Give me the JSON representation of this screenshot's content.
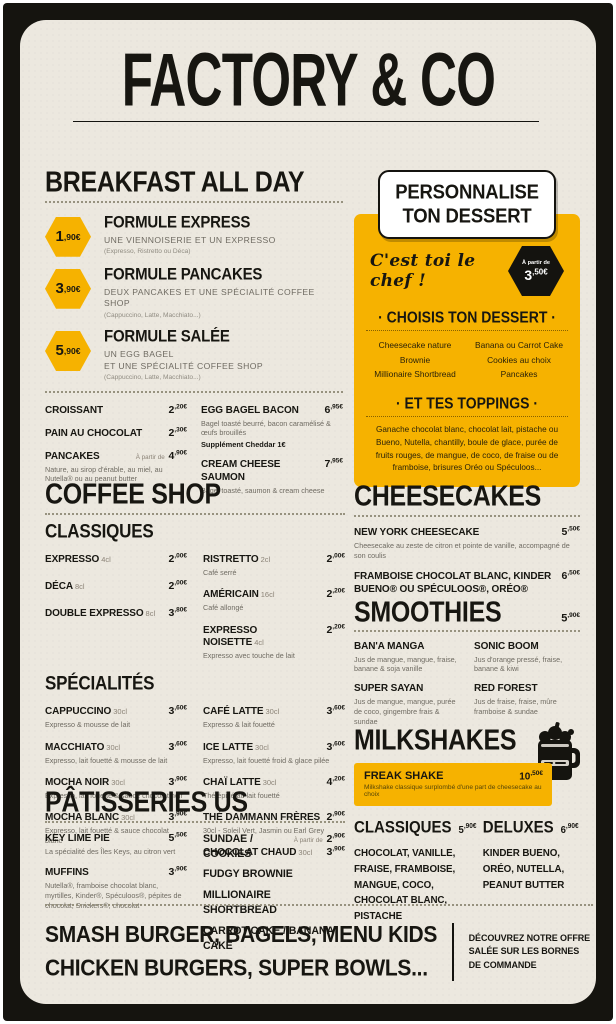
{
  "brand": {
    "title": "FACTORY & CO"
  },
  "colors": {
    "yellow": "#F6B200",
    "black": "#15140F",
    "paper": "#ECE8DF",
    "muted": "#6F6B62"
  },
  "breakfast": {
    "title": "BREAKFAST ALL DAY",
    "formules": [
      {
        "price": "1,90€",
        "name": "FORMULE EXPRESS",
        "desc": "UNE VIENNOISERIE ET UN EXPRESSO",
        "note": "(Expresso, Ristretto ou Déca)"
      },
      {
        "price": "3,90€",
        "name": "FORMULE PANCAKES",
        "desc": "DEUX PANCAKES ET UNE SPÉCIALITÉ COFFEE SHOP",
        "note": "(Cappuccino, Latte, Macchiato...)"
      },
      {
        "price": "5,90€",
        "name": "FORMULE SALÉE",
        "desc": "UN EGG BAGEL\nET UNE SPÉCIALITÉ COFFEE SHOP",
        "note": "(Cappuccino, Latte, Macchiato...)"
      }
    ],
    "items_left": [
      {
        "name": "CROISSANT",
        "price": "2,20€"
      },
      {
        "name": "PAIN AU CHOCOLAT",
        "price": "2,30€"
      },
      {
        "name": "PANCAKES",
        "prefix": "À partir de",
        "price": "4,90€",
        "desc": "Nature, au sirop d'érable, au miel, au Nutella® ou au peanut butter"
      }
    ],
    "items_right": [
      {
        "name": "EGG BAGEL BACON",
        "price": "6,95€",
        "desc": "Bagel toasté beurré, bacon caramélisé & œufs brouillés",
        "bold": "Supplément Cheddar 1€"
      },
      {
        "name": "CREAM CHEESE SAUMON",
        "price": "7,95€",
        "desc": "Bagel toasté, saumon & cream cheese"
      }
    ]
  },
  "dessert": {
    "badge_line1": "PERSONNALISE",
    "badge_line2": "TON DESSERT",
    "script": "C'est toi le chef !",
    "hex_prefix": "À partir de",
    "hex_price": "3,50€",
    "choose_title": "· CHOISIS TON DESSERT ·",
    "options_left": [
      "Cheesecake nature",
      "Brownie",
      "Millionaire Shortbread"
    ],
    "options_right": [
      "Banana ou Carrot Cake",
      "Cookies au choix",
      "Pancakes"
    ],
    "toppings_title": "· ET TES TOPPINGS ·",
    "toppings_text": "Ganache chocolat blanc, chocolat lait, pistache ou Bueno, Nutella, chantilly, boule de glace, purée de fruits rouges, de mangue, de coco, de fraise ou de framboise, brisures Oréo ou Spéculoos..."
  },
  "coffee": {
    "title": "COFFEE SHOP",
    "classiques_title": "CLASSIQUES",
    "classiques_left": [
      {
        "name": "EXPRESSO",
        "size": "4cl",
        "price": "2,00€"
      },
      {
        "name": "DÉCA",
        "size": "8cl",
        "price": "2,00€"
      },
      {
        "name": "DOUBLE EXPRESSO",
        "size": "8cl",
        "price": "3,80€"
      }
    ],
    "classiques_right": [
      {
        "name": "RISTRETTO",
        "size": "2cl",
        "price": "2,00€",
        "desc": "Café serré"
      },
      {
        "name": "AMÉRICAIN",
        "size": "16cl",
        "price": "2,20€",
        "desc": "Café allongé"
      },
      {
        "name": "EXPRESSO NOISETTE",
        "size": "4cl",
        "price": "2,20€",
        "desc": "Expresso avec touche de lait"
      }
    ],
    "specialites_title": "SPÉCIALITÉS",
    "specialites_left": [
      {
        "name": "CAPPUCCINO",
        "size": "30cl",
        "price": "3,60€",
        "desc": "Expresso & mousse de lait"
      },
      {
        "name": "MACCHIATO",
        "size": "30cl",
        "price": "3,60€",
        "desc": "Expresso, lait fouetté & mousse de lait"
      },
      {
        "name": "MOCHA NOIR",
        "size": "30cl",
        "price": "3,90€",
        "desc": "Expresso, lait fouetté & sauce chocolat noir"
      },
      {
        "name": "MOCHA BLANC",
        "size": "30cl",
        "price": "3,90€",
        "desc": "Expresso, lait fouetté & sauce chocolat blanc"
      }
    ],
    "specialites_right": [
      {
        "name": "CAFÉ LATTE",
        "size": "30cl",
        "price": "3,60€",
        "desc": "Expresso & lait fouetté"
      },
      {
        "name": "ICE LATTE",
        "size": "30cl",
        "price": "3,60€",
        "desc": "Expresso, lait fouetté froid & glace pilée"
      },
      {
        "name": "CHAÏ LATTE",
        "size": "30cl",
        "price": "4,20€",
        "desc": "Thé épicé au lait fouetté"
      },
      {
        "name": "THÉ DAMMANN FRÈRES",
        "price": "2,90€",
        "desc": "30cl - Soleil Vert, Jasmin ou Earl Grey"
      },
      {
        "name": "CHOCOLAT CHAUD",
        "size": "30cl",
        "price": "3,90€"
      }
    ]
  },
  "cheesecakes": {
    "title": "CHEESECAKES",
    "items": [
      {
        "name": "NEW YORK CHEESECAKE",
        "price": "5,50€",
        "desc": "Cheesecake au zeste de citron et pointe de vanille, accompagné de son coulis"
      },
      {
        "name": "FRAMBOISE CHOCOLAT BLANC, KINDER BUENO® OU SPÉCULOOS®, ORÉO®",
        "price": "6,50€"
      }
    ]
  },
  "smoothies": {
    "title": "SMOOTHIES",
    "price": "5,90€",
    "left": [
      {
        "name": "BAN'A MANGA",
        "desc": "Jus de mangue, mangue, fraise, banane & soja vanille"
      },
      {
        "name": "SUPER SAYAN",
        "desc": "Jus de mangue, mangue, purée de coco, gingembre frais & sundae"
      }
    ],
    "right": [
      {
        "name": "SONIC BOOM",
        "desc": "Jus d'orange pressé, fraise, banane & kiwi"
      },
      {
        "name": "RED FOREST",
        "desc": "Jus de fraise, fraise, mûre framboise & sundae"
      }
    ]
  },
  "milkshakes": {
    "title": "MILKSHAKES",
    "freak_name": "FREAK SHAKE",
    "freak_price": "10,50€",
    "freak_desc": "Milkshake classique surplombé d'une part de cheesecake au choix",
    "classiques_title": "CLASSIQUES",
    "classiques_price": "5,90€",
    "classiques_items": "CHOCOLAT, VANILLE, FRAISE, FRAMBOISE, MANGUE, COCO, CHOCOLAT BLANC, PISTACHE",
    "deluxes_title": "DELUXES",
    "deluxes_price": "6,90€",
    "deluxes_items": "KINDER BUENO, ORÉO, NUTELLA, PEANUT BUTTER"
  },
  "patisseries": {
    "title": "PÂTISSERIES US",
    "left": [
      {
        "name": "KEY LIME PIE",
        "price": "5,50€",
        "desc": "La spécialité des Îles Keys, au citron vert"
      },
      {
        "name": "MUFFINS",
        "price": "3,90€",
        "desc": "Nutella®, framboise chocolat blanc, myrtilles, Kinder®, Spéculoos®, pépites de chocolat, Snickers®, chocolat"
      }
    ],
    "right": [
      {
        "name": "SUNDAE / COOKIES",
        "prefix": "À partir de",
        "price": "2,90€"
      },
      {
        "name": "FUDGY BROWNIE"
      },
      {
        "name": "MILLIONAIRE SHORTBREAD"
      },
      {
        "name": "CARROT CAKE / BANANA CAKE"
      }
    ]
  },
  "footer": {
    "line1": "SMASH BURGER, BAGELS, MENU KIDS",
    "line2": "CHICKEN BURGERS, SUPER BOWLS...",
    "right": "DÉCOUVREZ NOTRE OFFRE SALÉE SUR LES BORNES DE COMMANDE"
  }
}
